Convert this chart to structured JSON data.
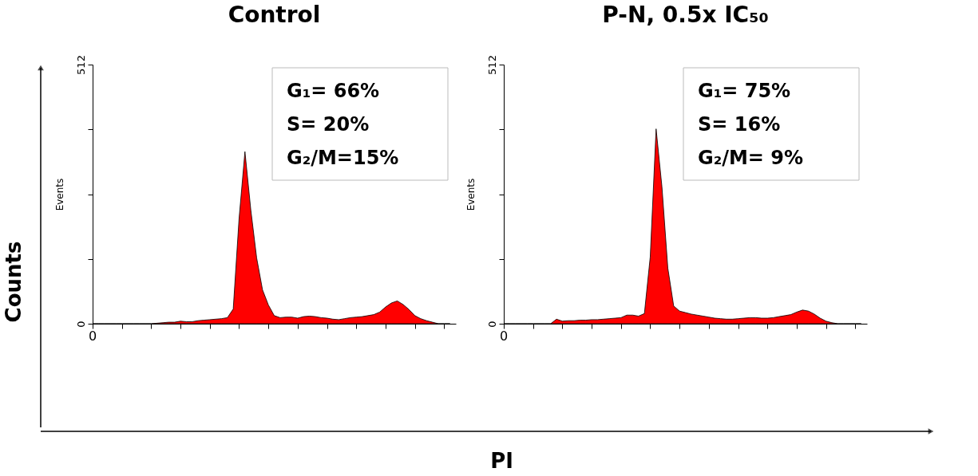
{
  "chart_data": [
    {
      "type": "area",
      "title": "Control",
      "ylabel": "Events",
      "color": "#ff0000",
      "ylim": [
        0,
        512
      ],
      "yticks": [
        0,
        {
          "value": 128,
          "label": null
        },
        {
          "value": 256,
          "label": null
        },
        {
          "value": 384,
          "label": null
        },
        512
      ],
      "categories": [
        null,
        null,
        null,
        null,
        null,
        null,
        null,
        null,
        null,
        null,
        null,
        null,
        null,
        null,
        null,
        null,
        null,
        null,
        null,
        null,
        null,
        null,
        null,
        null,
        null,
        null,
        null,
        null,
        null,
        null,
        null,
        null,
        null,
        null,
        null,
        null,
        null,
        null,
        null,
        null,
        null,
        null,
        null,
        null,
        null,
        null,
        null,
        null,
        null,
        null,
        null,
        null,
        null,
        null,
        null,
        null,
        null,
        null,
        null,
        null,
        null,
        null
      ],
      "values": [
        0,
        0,
        0,
        0,
        0,
        0,
        0,
        0,
        0,
        0,
        0,
        1,
        2,
        3,
        3,
        5,
        4,
        4,
        6,
        7,
        8,
        9,
        10,
        12,
        29,
        208,
        340,
        225,
        130,
        67,
        37,
        16,
        12,
        13,
        13,
        11,
        14,
        15,
        14,
        12,
        11,
        9,
        8,
        10,
        12,
        13,
        14,
        16,
        18,
        23,
        33,
        41,
        45,
        38,
        28,
        16,
        10,
        6,
        3,
        0,
        0,
        0
      ],
      "annotations": [
        "0",
        "G₁= 66%",
        "S= 20%",
        "G₂/M=15%"
      ]
    },
    {
      "type": "area",
      "title": "P-N, 0.5x IC₅₀",
      "ylabel": "Events",
      "color": "#ff0000",
      "ylim": [
        0,
        512
      ],
      "yticks": [
        0,
        {
          "value": 128,
          "label": null
        },
        {
          "value": 256,
          "label": null
        },
        {
          "value": 384,
          "label": null
        },
        512
      ],
      "categories": [
        null,
        null,
        null,
        null,
        null,
        null,
        null,
        null,
        null,
        null,
        null,
        null,
        null,
        null,
        null,
        null,
        null,
        null,
        null,
        null,
        null,
        null,
        null,
        null,
        null,
        null,
        null,
        null,
        null,
        null,
        null,
        null,
        null,
        null,
        null,
        null,
        null,
        null,
        null,
        null,
        null,
        null,
        null,
        null,
        null,
        null,
        null,
        null,
        null,
        null,
        null,
        null,
        null,
        null,
        null,
        null,
        null,
        null,
        null,
        null,
        null,
        null
      ],
      "values": [
        0,
        0,
        0,
        0,
        0,
        0,
        0,
        0,
        0,
        9,
        5,
        6,
        6,
        7,
        7,
        8,
        8,
        9,
        10,
        11,
        12,
        17,
        17,
        15,
        20,
        132,
        385,
        270,
        110,
        35,
        25,
        22,
        19,
        17,
        15,
        13,
        11,
        10,
        9,
        9,
        10,
        11,
        12,
        12,
        11,
        11,
        12,
        14,
        16,
        18,
        23,
        27,
        25,
        19,
        11,
        5,
        2,
        0,
        0,
        0,
        0,
        0
      ],
      "annotations": [
        "0",
        "G₁= 75%",
        "S= 16%",
        "G₂/M= 9%"
      ]
    },
    {
      "type": "other",
      "xlabel": "PI",
      "ylabel": "Counts"
    }
  ]
}
